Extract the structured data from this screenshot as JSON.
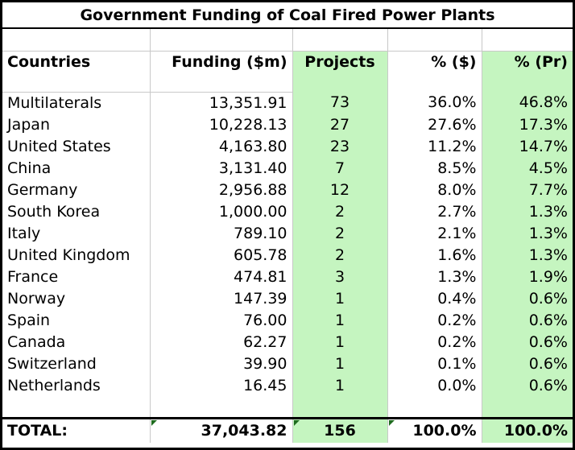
{
  "title": "Government Funding of Coal Fired Power Plants",
  "headers": [
    "Countries",
    "Funding ($m)",
    "Projects",
    "% ($)",
    "% (Pr)"
  ],
  "rows": [
    {
      "country": "Multilaterals",
      "funding": "13,351.91",
      "projects": "73",
      "pct_funding": "36.0%",
      "pct_projects": "46.8%"
    },
    {
      "country": "Japan",
      "funding": "10,228.13",
      "projects": "27",
      "pct_funding": "27.6%",
      "pct_projects": "17.3%"
    },
    {
      "country": "United States",
      "funding": "4,163.80",
      "projects": "23",
      "pct_funding": "11.2%",
      "pct_projects": "14.7%"
    },
    {
      "country": "China",
      "funding": "3,131.40",
      "projects": "7",
      "pct_funding": "8.5%",
      "pct_projects": "4.5%"
    },
    {
      "country": "Germany",
      "funding": "2,956.88",
      "projects": "12",
      "pct_funding": "8.0%",
      "pct_projects": "7.7%"
    },
    {
      "country": "South Korea",
      "funding": "1,000.00",
      "projects": "2",
      "pct_funding": "2.7%",
      "pct_projects": "1.3%"
    },
    {
      "country": "Italy",
      "funding": "789.10",
      "projects": "2",
      "pct_funding": "2.1%",
      "pct_projects": "1.3%"
    },
    {
      "country": "United Kingdom",
      "funding": "605.78",
      "projects": "2",
      "pct_funding": "1.6%",
      "pct_projects": "1.3%"
    },
    {
      "country": "France",
      "funding": "474.81",
      "projects": "3",
      "pct_funding": "1.3%",
      "pct_projects": "1.9%"
    },
    {
      "country": "Norway",
      "funding": "147.39",
      "projects": "1",
      "pct_funding": "0.4%",
      "pct_projects": "0.6%"
    },
    {
      "country": "Spain",
      "funding": "76.00",
      "projects": "1",
      "pct_funding": "0.2%",
      "pct_projects": "0.6%"
    },
    {
      "country": "Canada",
      "funding": "62.27",
      "projects": "1",
      "pct_funding": "0.2%",
      "pct_projects": "0.6%"
    },
    {
      "country": "Switzerland",
      "funding": "39.90",
      "projects": "1",
      "pct_funding": "0.1%",
      "pct_projects": "0.6%"
    },
    {
      "country": "Netherlands",
      "funding": "16.45",
      "projects": "1",
      "pct_funding": "0.0%",
      "pct_projects": "0.6%"
    }
  ],
  "total": {
    "label": "TOTAL:",
    "funding": "37,043.82",
    "projects": "156",
    "pct_funding": "100.0%",
    "pct_projects": "100.0%"
  },
  "colors": {
    "highlight_green": "#c5f5c0",
    "grid": "#c8c8c8",
    "comment_marker": "#1e6b1e"
  }
}
